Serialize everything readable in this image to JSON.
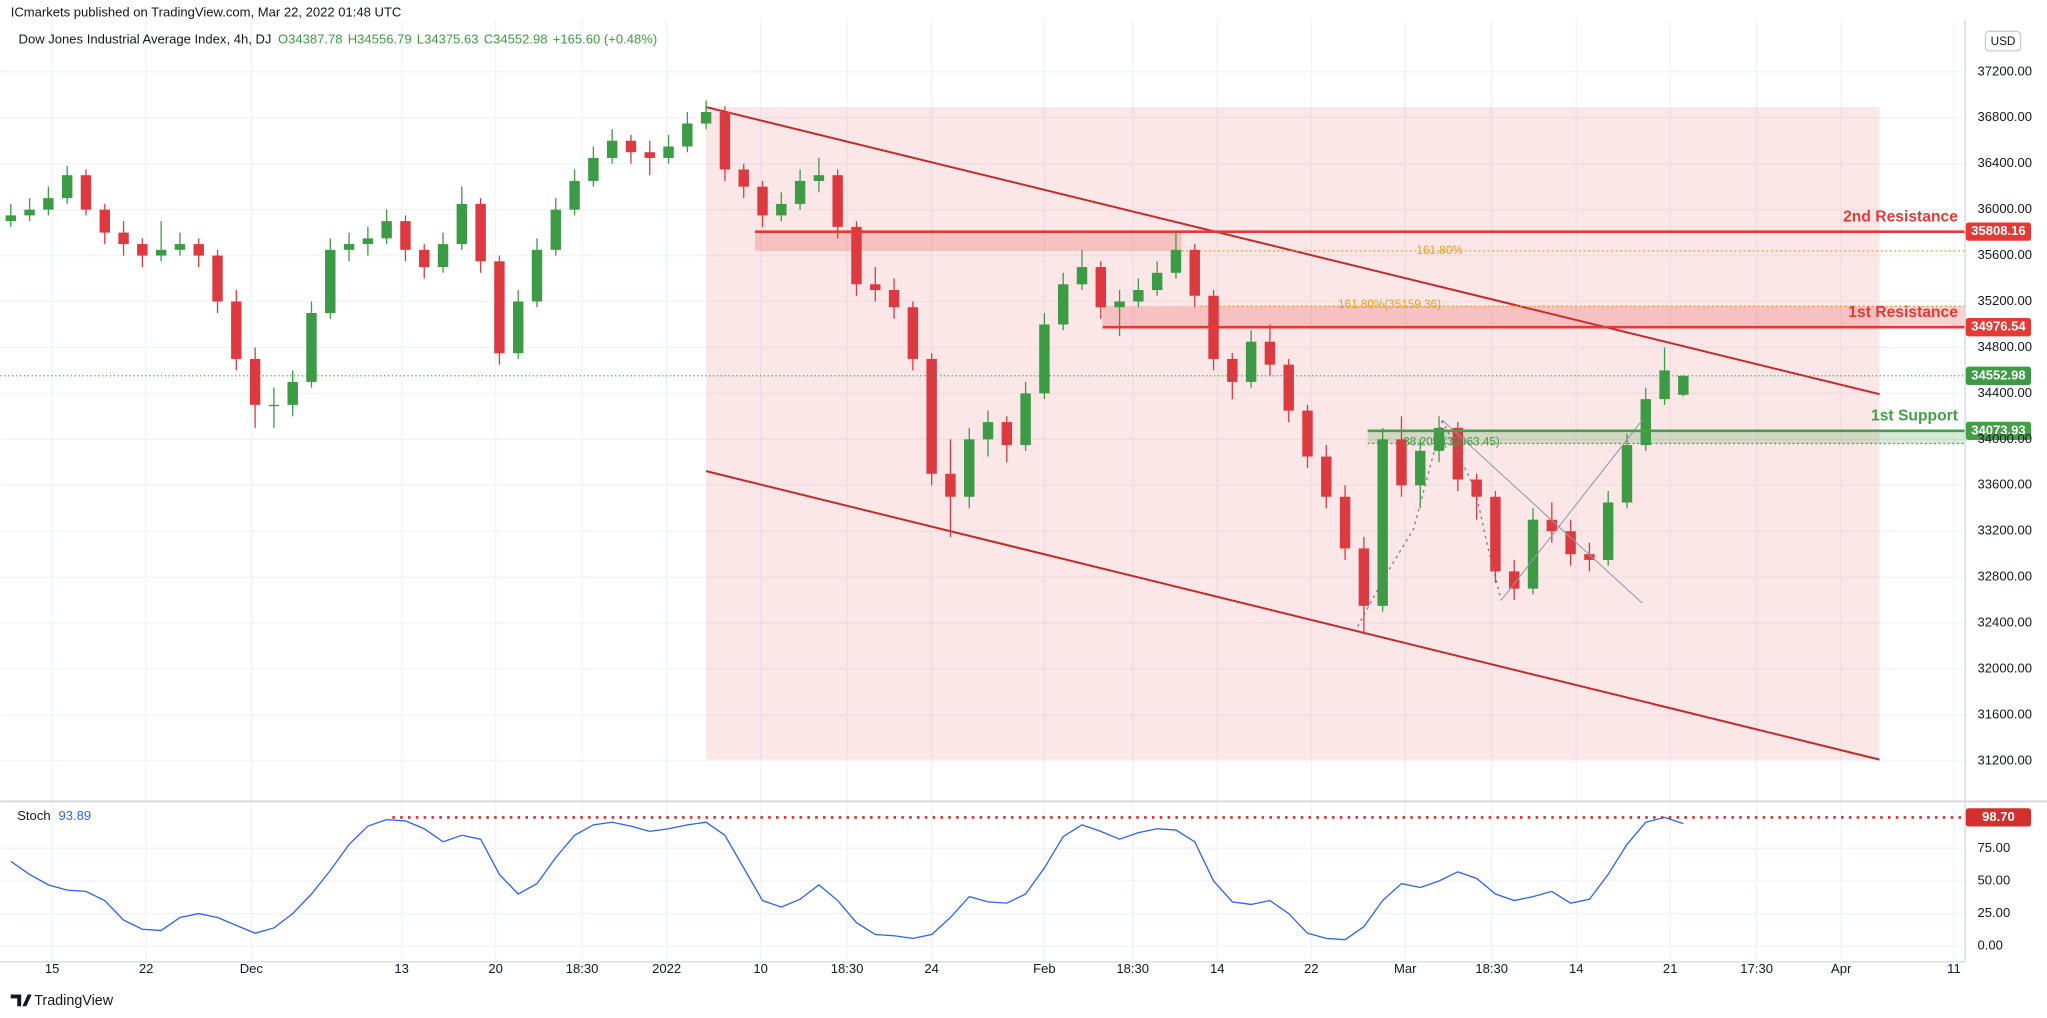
{
  "header": {
    "published": "ICmarkets published on TradingView.com, Mar 22, 2022 01:48 UTC",
    "brand": "TradingView"
  },
  "chart_data": [
    {
      "type": "candlestick",
      "symbol": "Dow Jones Industrial Average Index, 4h, DJ",
      "legend": [
        "O34387.78",
        "H34556.79",
        "L34375.63",
        "C34552.98",
        "+165.60 (+0.48%)"
      ],
      "currency": "USD",
      "up_color": "#3d9b45",
      "down_color": "#db3b40",
      "ohlc": [
        [
          35900,
          36050,
          35850,
          35950
        ],
        [
          35950,
          36100,
          35900,
          36000
        ],
        [
          36000,
          36200,
          35950,
          36100
        ],
        [
          36100,
          36380,
          36050,
          36300
        ],
        [
          36300,
          36350,
          35950,
          36000
        ],
        [
          36000,
          36050,
          35700,
          35800
        ],
        [
          35800,
          35900,
          35600,
          35700
        ],
        [
          35700,
          35750,
          35500,
          35600
        ],
        [
          35600,
          35900,
          35550,
          35650
        ],
        [
          35650,
          35800,
          35600,
          35700
        ],
        [
          35700,
          35750,
          35500,
          35600
        ],
        [
          35600,
          35650,
          35100,
          35200
        ],
        [
          35200,
          35300,
          34600,
          34700
        ],
        [
          34700,
          34800,
          34100,
          34300
        ],
        [
          34300,
          34450,
          34100,
          34300
        ],
        [
          34300,
          34600,
          34200,
          34500
        ],
        [
          34500,
          35200,
          34450,
          35100
        ],
        [
          35100,
          35750,
          35050,
          35650
        ],
        [
          35650,
          35800,
          35550,
          35700
        ],
        [
          35700,
          35850,
          35600,
          35750
        ],
        [
          35750,
          36000,
          35700,
          35900
        ],
        [
          35900,
          35950,
          35550,
          35650
        ],
        [
          35650,
          35700,
          35400,
          35500
        ],
        [
          35500,
          35800,
          35450,
          35700
        ],
        [
          35700,
          36200,
          35650,
          36050
        ],
        [
          36050,
          36100,
          35450,
          35550
        ],
        [
          35550,
          35600,
          34650,
          34750
        ],
        [
          34750,
          35300,
          34700,
          35200
        ],
        [
          35200,
          35750,
          35150,
          35650
        ],
        [
          35650,
          36100,
          35600,
          36000
        ],
        [
          36000,
          36350,
          35950,
          36250
        ],
        [
          36250,
          36550,
          36200,
          36450
        ],
        [
          36450,
          36700,
          36400,
          36600
        ],
        [
          36600,
          36650,
          36400,
          36500
        ],
        [
          36500,
          36600,
          36300,
          36450
        ],
        [
          36450,
          36650,
          36400,
          36550
        ],
        [
          36550,
          36850,
          36500,
          36750
        ],
        [
          36750,
          36950,
          36700,
          36850
        ],
        [
          36850,
          36900,
          36250,
          36350
        ],
        [
          36350,
          36400,
          36100,
          36200
        ],
        [
          36200,
          36250,
          35850,
          35950
        ],
        [
          35950,
          36150,
          35900,
          36050
        ],
        [
          36050,
          36350,
          36000,
          36250
        ],
        [
          36250,
          36450,
          36150,
          36300
        ],
        [
          36300,
          36350,
          35750,
          35850
        ],
        [
          35850,
          35900,
          35250,
          35350
        ],
        [
          35350,
          35500,
          35200,
          35300
        ],
        [
          35300,
          35400,
          35050,
          35150
        ],
        [
          35150,
          35200,
          34600,
          34700
        ],
        [
          34700,
          34750,
          33600,
          33700
        ],
        [
          33700,
          34000,
          33150,
          33500
        ],
        [
          33500,
          34100,
          33400,
          34000
        ],
        [
          34000,
          34250,
          33850,
          34150
        ],
        [
          34150,
          34200,
          33800,
          33950
        ],
        [
          33950,
          34500,
          33900,
          34400
        ],
        [
          34400,
          35100,
          34350,
          35000
        ],
        [
          35000,
          35450,
          34950,
          35350
        ],
        [
          35350,
          35650,
          35300,
          35500
        ],
        [
          35500,
          35550,
          35050,
          35150
        ],
        [
          35150,
          35300,
          34900,
          35200
        ],
        [
          35200,
          35400,
          35150,
          35300
        ],
        [
          35300,
          35550,
          35250,
          35450
        ],
        [
          35450,
          35800,
          35400,
          35650
        ],
        [
          35650,
          35700,
          35150,
          35250
        ],
        [
          35250,
          35300,
          34600,
          34700
        ],
        [
          34700,
          34750,
          34350,
          34500
        ],
        [
          34500,
          34950,
          34450,
          34850
        ],
        [
          34850,
          35000,
          34550,
          34650
        ],
        [
          34650,
          34700,
          34150,
          34250
        ],
        [
          34250,
          34300,
          33750,
          33850
        ],
        [
          33850,
          33950,
          33400,
          33500
        ],
        [
          33500,
          33600,
          32950,
          33050
        ],
        [
          33050,
          33150,
          32300,
          32550
        ],
        [
          32550,
          34100,
          32500,
          34000
        ],
        [
          34000,
          34200,
          33500,
          33600
        ],
        [
          33600,
          34000,
          33400,
          33900
        ],
        [
          33900,
          34200,
          33800,
          34100
        ],
        [
          34100,
          34150,
          33550,
          33650
        ],
        [
          33650,
          33700,
          33300,
          33500
        ],
        [
          33500,
          33550,
          32750,
          32850
        ],
        [
          32850,
          32950,
          32600,
          32700
        ],
        [
          32700,
          33400,
          32650,
          33300
        ],
        [
          33300,
          33450,
          33100,
          33200
        ],
        [
          33200,
          33300,
          32900,
          33000
        ],
        [
          33000,
          33100,
          32850,
          32950
        ],
        [
          32950,
          33550,
          32900,
          33450
        ],
        [
          33450,
          34050,
          33400,
          33950
        ],
        [
          33950,
          34450,
          33900,
          34350
        ],
        [
          34350,
          34800,
          34300,
          34600
        ],
        [
          34387.78,
          34556.79,
          34375.63,
          34552.98
        ]
      ],
      "xlim": [
        -0.56,
        103.96
      ],
      "xticks": [
        {
          "value": 2.2,
          "label": "15"
        },
        {
          "value": 7.2,
          "label": "22"
        },
        {
          "value": 12.8,
          "label": "Dec"
        },
        {
          "value": 20.8,
          "label": "13"
        },
        {
          "value": 25.8,
          "label": "20"
        },
        {
          "value": 30.4,
          "label": "18:30"
        },
        {
          "value": 34.9,
          "label": "2022"
        },
        {
          "value": 39.9,
          "label": "10"
        },
        {
          "value": 44.5,
          "label": "18:30"
        },
        {
          "value": 49,
          "label": "24"
        },
        {
          "value": 55,
          "label": "Feb"
        },
        {
          "value": 59.7,
          "label": "18:30"
        },
        {
          "value": 64.2,
          "label": "14"
        },
        {
          "value": 69.2,
          "label": "22"
        },
        {
          "value": 74.2,
          "label": "Mar"
        },
        {
          "value": 78.8,
          "label": "18:30"
        },
        {
          "value": 83.3,
          "label": "14"
        },
        {
          "value": 88.3,
          "label": "21"
        },
        {
          "value": 92.9,
          "label": "17:30"
        },
        {
          "value": 97.4,
          "label": "Apr"
        },
        {
          "value": 103.4,
          "label": "11"
        }
      ],
      "ylim": [
        30859,
        37655
      ],
      "yticks": [
        {
          "value": 31200,
          "label": "31200.00"
        },
        {
          "value": 31600,
          "label": "31600.00"
        },
        {
          "value": 32000,
          "label": "32000.00"
        },
        {
          "value": 32400,
          "label": "32400.00"
        },
        {
          "value": 32800,
          "label": "32800.00"
        },
        {
          "value": 33200,
          "label": "33200.00"
        },
        {
          "value": 33600,
          "label": "33600.00"
        },
        {
          "value": 34000,
          "label": "34000.00"
        },
        {
          "value": 34400,
          "label": "34400.00"
        },
        {
          "value": 34800,
          "label": "34800.00"
        },
        {
          "value": 35200,
          "label": "35200.00"
        },
        {
          "value": 35600,
          "label": "35600.00"
        },
        {
          "value": 36000,
          "label": "36000.00"
        },
        {
          "value": 36400,
          "label": "36400.00"
        },
        {
          "value": 36800,
          "label": "36800.00"
        },
        {
          "value": 37200,
          "label": "37200.00"
        }
      ],
      "grid": true,
      "channel": {
        "color": "#c62828",
        "upper": [
          [
            37.0,
            36893
          ],
          [
            99.44,
            34393
          ]
        ],
        "lower": [
          [
            37.0,
            33723
          ],
          [
            99.44,
            31211
          ]
        ]
      },
      "levels": [
        {
          "name": "2nd Resistance",
          "value": 35808.16,
          "color": "#e53935",
          "start": 39.6,
          "band_end": 62.3,
          "fib": {
            "label": "161.80%",
            "value": 35640,
            "start": 62.3,
            "color": "#f0a020"
          }
        },
        {
          "name": "1st Resistance",
          "value": 34976.54,
          "color": "#e53935",
          "start": 58.1,
          "band_end": 103.96,
          "fib": {
            "label": "161.80%(35159.36)",
            "value": 35159.36,
            "start": 63.3,
            "color": "#f0a020"
          }
        },
        {
          "name": "1st Support",
          "value": 34073.93,
          "color": "#43a047",
          "start": 72.2,
          "band_end": 103.96,
          "fib": {
            "label": "38.20%(33963.45)",
            "value": 33963.45,
            "start": 72.2,
            "color": "#43a047"
          }
        }
      ]
    },
    {
      "type": "line",
      "name": "Stoch",
      "color": "#2962ff",
      "values": [
        65,
        55,
        47,
        43,
        42,
        35,
        20,
        13,
        12,
        22,
        25,
        22,
        16,
        10,
        14,
        25,
        40,
        58,
        78,
        92,
        97,
        96,
        90,
        80,
        85,
        82,
        55,
        40,
        48,
        68,
        85,
        93,
        95,
        92,
        88,
        90,
        93,
        95,
        85,
        60,
        35,
        30,
        36,
        47,
        35,
        18,
        9,
        8,
        6,
        9,
        22,
        38,
        34,
        33,
        40,
        60,
        84,
        93,
        88,
        82,
        87,
        90,
        89,
        80,
        50,
        34,
        32,
        35,
        25,
        10,
        6,
        5,
        15,
        35,
        48,
        45,
        50,
        57,
        52,
        40,
        35,
        38,
        42,
        33,
        36,
        55,
        78,
        95,
        98.7,
        93.89
      ],
      "ylim": [
        -10,
        110
      ],
      "yticks": [
        {
          "value": 0,
          "label": "0.00"
        },
        {
          "value": 25,
          "label": "25.00"
        },
        {
          "value": 50,
          "label": "50.00"
        },
        {
          "value": 75,
          "label": "75.00"
        }
      ],
      "reference": {
        "value": 98.7,
        "label": "98.70",
        "start": 20.3,
        "color": "#d32f2f"
      }
    }
  ]
}
